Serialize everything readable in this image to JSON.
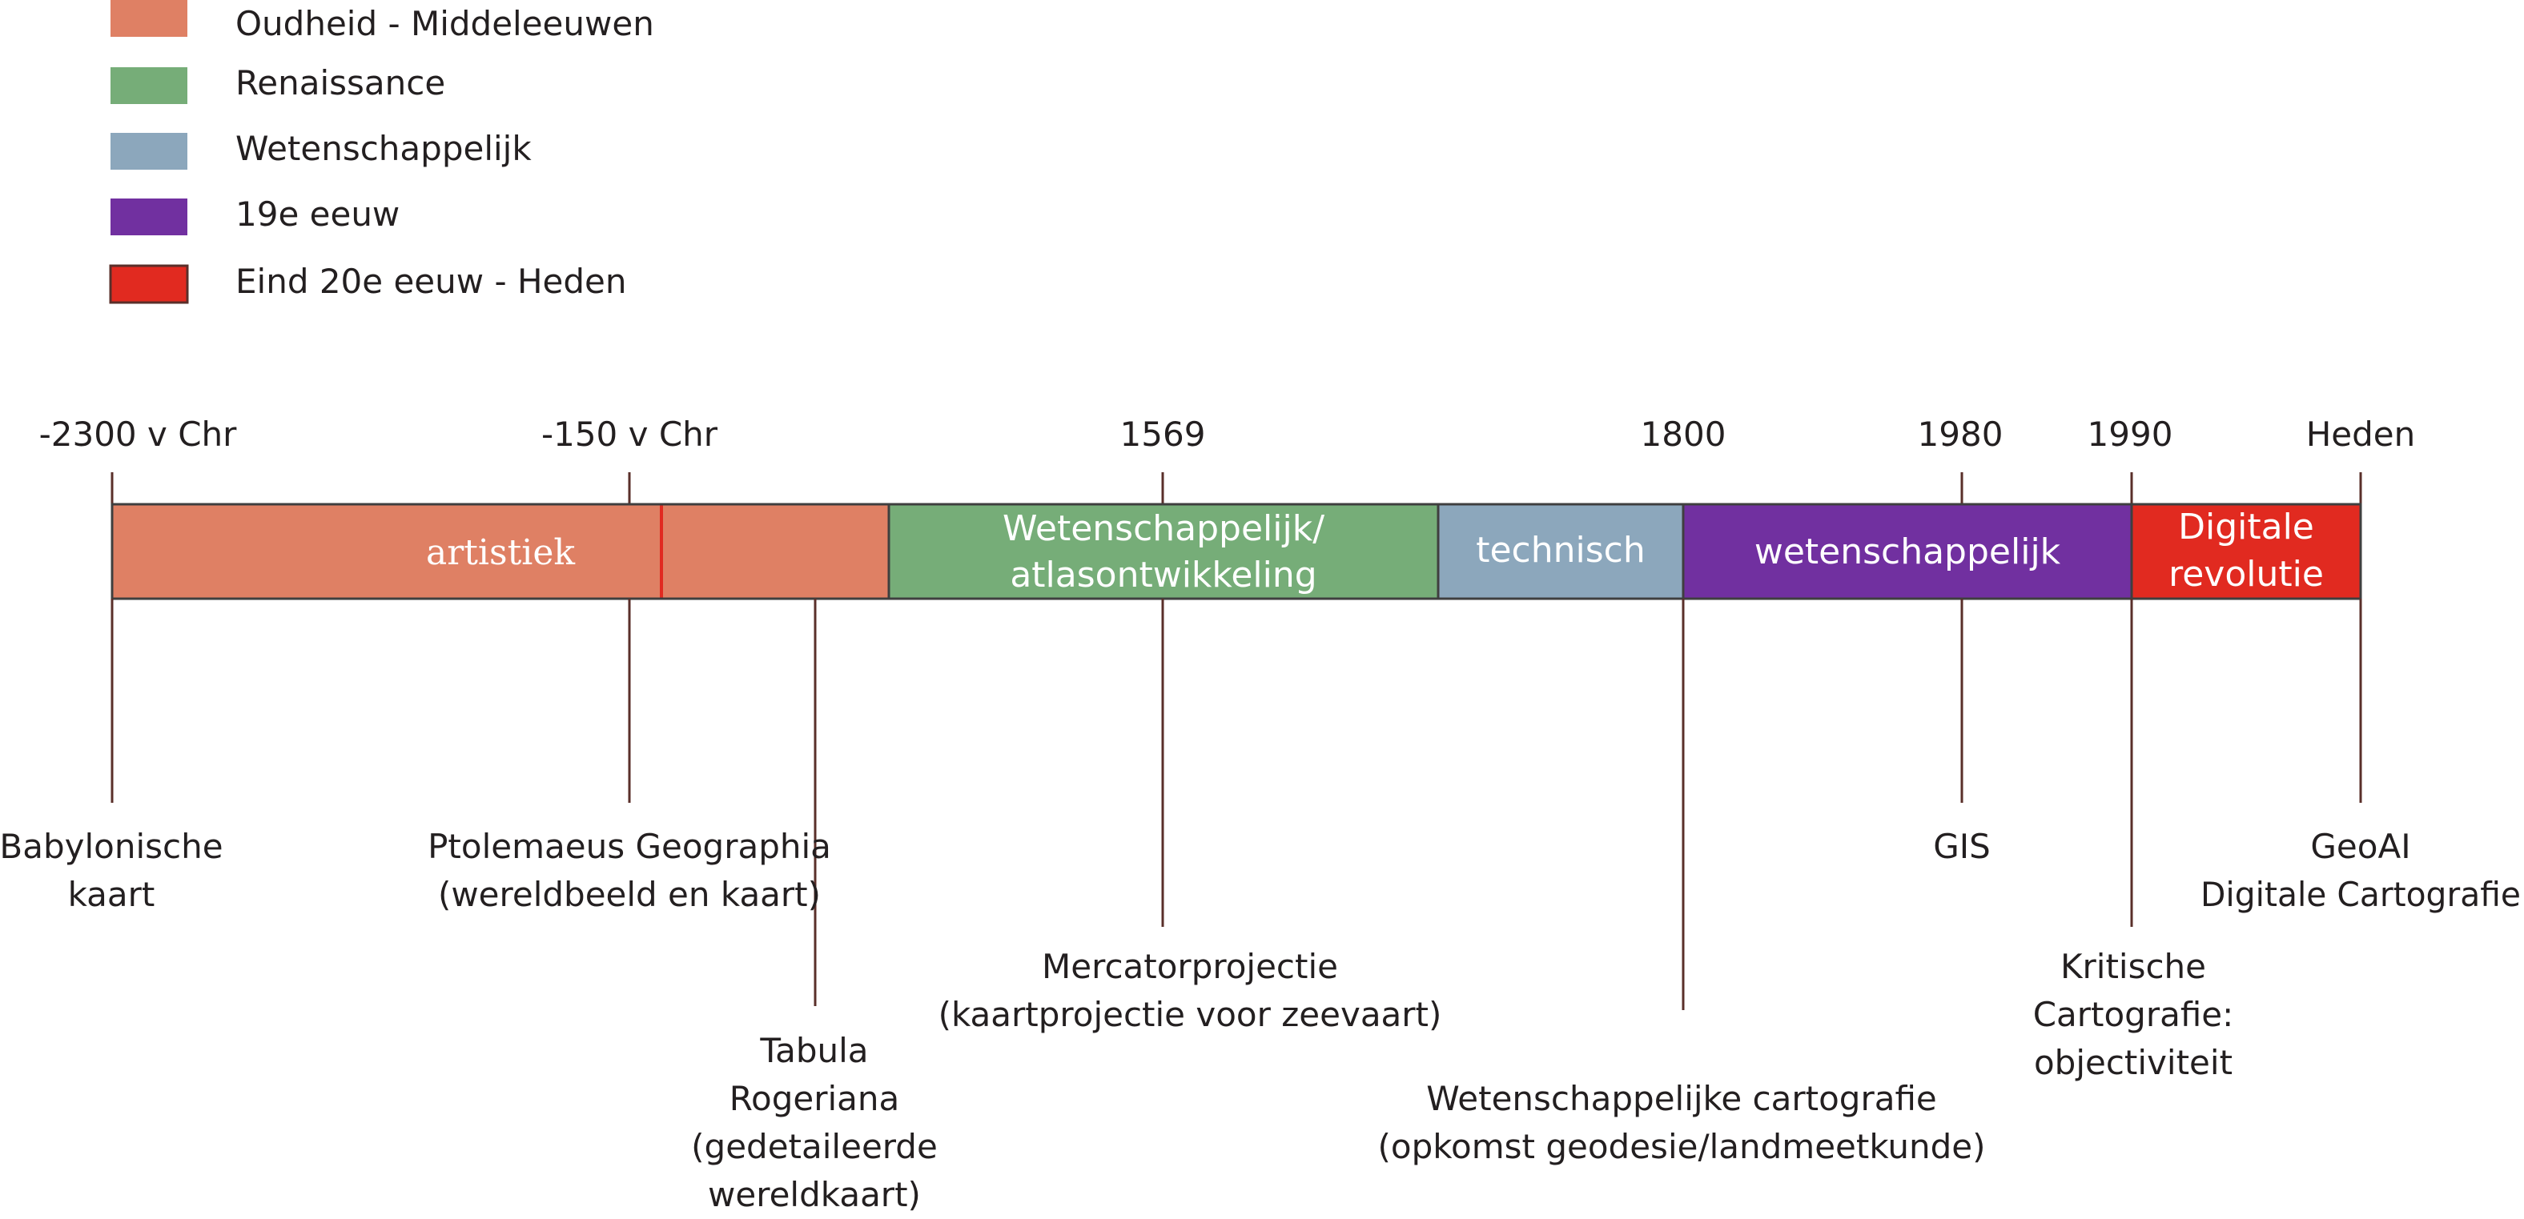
{
  "legend": [
    {
      "label": "Oudheid - Middeleeuwen",
      "color": "#df8064"
    },
    {
      "label": "Renaissance",
      "color": "#76ad78"
    },
    {
      "label": "Wetenschappelijk",
      "color": "#8ca7bc"
    },
    {
      "label": "19e eeuw",
      "color": "#7130a0"
    },
    {
      "label": "Eind 20e eeuw - Heden",
      "color": "#e12a20"
    }
  ],
  "years": [
    "-2300 v Chr",
    "-150 v Chr",
    "1569",
    "1800",
    "1980",
    "1990",
    "Heden"
  ],
  "eras": [
    {
      "lines": [
        "artistiek"
      ],
      "color": "#df8064"
    },
    {
      "lines": [
        "Wetenschappelijk/",
        "atlasontwikkeling"
      ],
      "color": "#76ad78"
    },
    {
      "lines": [
        "technisch"
      ],
      "color": "#8ca7bc"
    },
    {
      "lines": [
        "wetenschappelijk"
      ],
      "color": "#7130a0"
    },
    {
      "lines": [
        "Digitale",
        "revolutie"
      ],
      "color": "#e12a20"
    }
  ],
  "events": [
    {
      "lines": [
        "Babylonische",
        "kaart"
      ]
    },
    {
      "lines": [
        "Ptolemaeus Geographia",
        "(wereldbeeld en kaart)"
      ]
    },
    {
      "lines": [
        "Tabula",
        "Rogeriana",
        "(gedetaileerde",
        "wereldkaart)"
      ]
    },
    {
      "lines": [
        "Mercatorprojectie",
        "(kaartprojectie voor zeevaart)"
      ]
    },
    {
      "lines": [
        "Wetenschappelijke cartografie",
        "(opkomst geodesie/landmeetkunde)"
      ]
    },
    {
      "lines": [
        "GIS"
      ]
    },
    {
      "lines": [
        "Kritische",
        "Cartografie:",
        "objectiviteit"
      ]
    },
    {
      "lines": [
        "GeoAI",
        "Digitale Cartografie"
      ]
    }
  ],
  "colors": {
    "line": "#5a2f2a",
    "bar_border": "#3f3f3f",
    "divider": "#e12a20"
  }
}
